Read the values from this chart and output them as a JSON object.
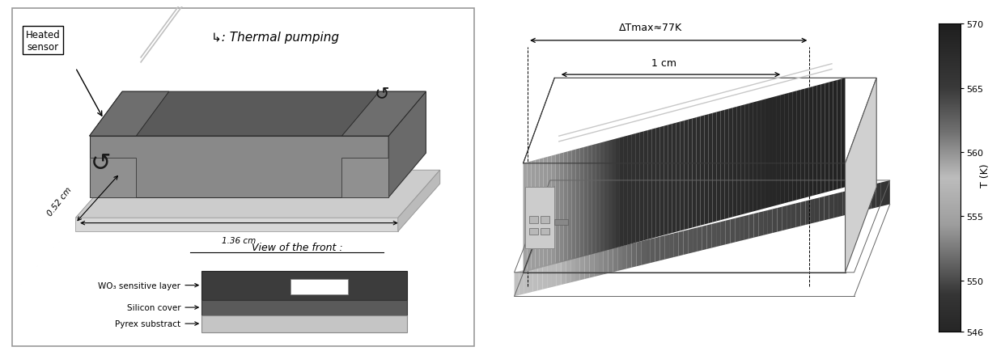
{
  "fig_width": 12.42,
  "fig_height": 4.35,
  "dpi": 100,
  "bg_color": "#ffffff",
  "left_panel": {
    "label_box": "Heated\nsensor",
    "thermal_pumping_text": ": Thermal pumping",
    "dim1": "0.52 cm",
    "dim2": "1.36 cm",
    "front_view_title": "View of the front :",
    "front_layers": [
      "WO₃ sensitive layer",
      "Silicon cover",
      "Pyrex substract"
    ],
    "top_color": "#5a5a5a",
    "front_color": "#898989",
    "right_color": "#6a6a6a",
    "sub_top_color": "#c0c0c0",
    "sub_front_color": "#d0d0d0",
    "sub_right_color": "#b8b8b8"
  },
  "right_panel": {
    "delta_T_text": "ΔTmax≈77K",
    "scale_text": "1 cm",
    "colorbar_label": "T (K)",
    "colorbar_ticks": [
      570,
      565,
      560,
      555,
      550,
      546
    ],
    "colorbar_min": 546,
    "colorbar_max": 570
  }
}
